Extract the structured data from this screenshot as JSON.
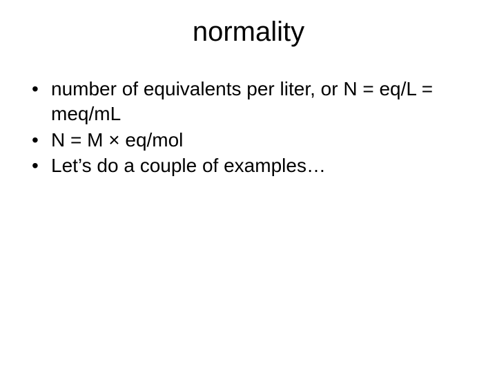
{
  "slide": {
    "background_color": "#ffffff",
    "text_color": "#000000",
    "title": {
      "text": "normality",
      "font_size_pt": 40,
      "font_weight": 400,
      "alignment": "center"
    },
    "body": {
      "font_size_pt": 28,
      "bullets": [
        "number of equivalents per liter, or N = eq/L = meq/mL",
        "N = M × eq/mol",
        "Let’s do a couple of examples…"
      ]
    }
  }
}
